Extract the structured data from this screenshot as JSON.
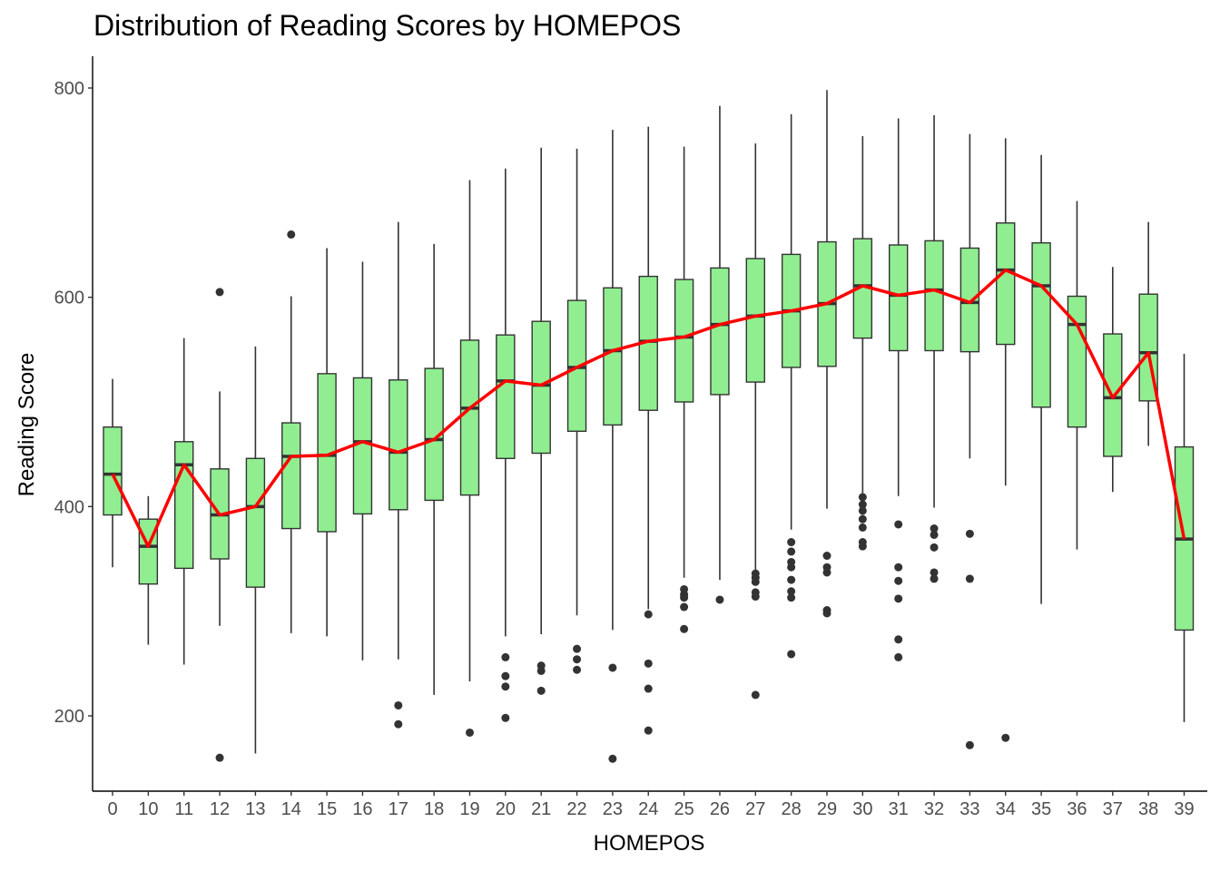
{
  "chart_data": {
    "type": "boxplot",
    "title": "Distribution of Reading Scores by HOMEPOS",
    "xlabel": "HOMEPOS",
    "ylabel": "Reading Score",
    "ylim": [
      130,
      830
    ],
    "yticks": [
      200,
      400,
      600,
      800
    ],
    "grid": false,
    "colors": {
      "box_fill": "#90EE90",
      "box_stroke": "#333333",
      "median_line": "#FF0000",
      "outlier": "#333333"
    },
    "categories": [
      "0",
      "10",
      "11",
      "12",
      "13",
      "14",
      "15",
      "16",
      "17",
      "18",
      "19",
      "20",
      "21",
      "22",
      "23",
      "24",
      "25",
      "26",
      "27",
      "28",
      "29",
      "30",
      "31",
      "32",
      "33",
      "34",
      "35",
      "36",
      "37",
      "38",
      "39"
    ],
    "boxes": [
      {
        "x": "0",
        "whisker_low": 342,
        "q1": 392,
        "median": 431,
        "q3": 476,
        "whisker_high": 522,
        "outliers": []
      },
      {
        "x": "10",
        "whisker_low": 268,
        "q1": 326,
        "median": 362,
        "q3": 388,
        "whisker_high": 410,
        "outliers": []
      },
      {
        "x": "11",
        "whisker_low": 249,
        "q1": 341,
        "median": 440,
        "q3": 462,
        "whisker_high": 561,
        "outliers": []
      },
      {
        "x": "12",
        "whisker_low": 286,
        "q1": 350,
        "median": 392,
        "q3": 436,
        "whisker_high": 510,
        "outliers": [
          605,
          160
        ]
      },
      {
        "x": "13",
        "whisker_low": 164,
        "q1": 323,
        "median": 400,
        "q3": 446,
        "whisker_high": 553,
        "outliers": []
      },
      {
        "x": "14",
        "whisker_low": 279,
        "q1": 379,
        "median": 448,
        "q3": 480,
        "whisker_high": 601,
        "outliers": [
          660
        ]
      },
      {
        "x": "15",
        "whisker_low": 276,
        "q1": 376,
        "median": 449,
        "q3": 527,
        "whisker_high": 647,
        "outliers": []
      },
      {
        "x": "16",
        "whisker_low": 253,
        "q1": 393,
        "median": 462,
        "q3": 523,
        "whisker_high": 634,
        "outliers": []
      },
      {
        "x": "17",
        "whisker_low": 254,
        "q1": 397,
        "median": 452,
        "q3": 521,
        "whisker_high": 672,
        "outliers": [
          210,
          192
        ]
      },
      {
        "x": "18",
        "whisker_low": 220,
        "q1": 406,
        "median": 464,
        "q3": 532,
        "whisker_high": 651,
        "outliers": []
      },
      {
        "x": "19",
        "whisker_low": 233,
        "q1": 411,
        "median": 494,
        "q3": 559,
        "whisker_high": 712,
        "outliers": [
          184
        ]
      },
      {
        "x": "20",
        "whisker_low": 276,
        "q1": 446,
        "median": 520,
        "q3": 564,
        "whisker_high": 723,
        "outliers": [
          256,
          238,
          228,
          198
        ]
      },
      {
        "x": "21",
        "whisker_low": 278,
        "q1": 451,
        "median": 516,
        "q3": 577,
        "whisker_high": 743,
        "outliers": [
          248,
          243,
          224
        ]
      },
      {
        "x": "22",
        "whisker_low": 296,
        "q1": 472,
        "median": 533,
        "q3": 597,
        "whisker_high": 742,
        "outliers": [
          264,
          254,
          244
        ]
      },
      {
        "x": "23",
        "whisker_low": 282,
        "q1": 478,
        "median": 549,
        "q3": 609,
        "whisker_high": 760,
        "outliers": [
          246,
          159
        ]
      },
      {
        "x": "24",
        "whisker_low": 302,
        "q1": 492,
        "median": 558,
        "q3": 620,
        "whisker_high": 763,
        "outliers": [
          297,
          250,
          226,
          186
        ]
      },
      {
        "x": "25",
        "whisker_low": 332,
        "q1": 500,
        "median": 562,
        "q3": 617,
        "whisker_high": 744,
        "outliers": [
          321,
          316,
          313,
          304,
          283
        ]
      },
      {
        "x": "26",
        "whisker_low": 330,
        "q1": 507,
        "median": 574,
        "q3": 628,
        "whisker_high": 783,
        "outliers": [
          311
        ]
      },
      {
        "x": "27",
        "whisker_low": 338,
        "q1": 519,
        "median": 582,
        "q3": 637,
        "whisker_high": 747,
        "outliers": [
          336,
          332,
          328,
          318,
          314,
          220
        ]
      },
      {
        "x": "28",
        "whisker_low": 378,
        "q1": 533,
        "median": 587,
        "q3": 641,
        "whisker_high": 775,
        "outliers": [
          366,
          357,
          347,
          342,
          330,
          319,
          313,
          259
        ]
      },
      {
        "x": "29",
        "whisker_low": 398,
        "q1": 534,
        "median": 594,
        "q3": 653,
        "whisker_high": 798,
        "outliers": [
          353,
          342,
          337,
          301,
          298
        ]
      },
      {
        "x": "30",
        "whisker_low": 412,
        "q1": 561,
        "median": 611,
        "q3": 656,
        "whisker_high": 754,
        "outliers": [
          409,
          402,
          396,
          388,
          380,
          366,
          362
        ]
      },
      {
        "x": "31",
        "whisker_low": 410,
        "q1": 549,
        "median": 602,
        "q3": 650,
        "whisker_high": 771,
        "outliers": [
          383,
          342,
          329,
          312,
          273,
          256
        ]
      },
      {
        "x": "32",
        "whisker_low": 399,
        "q1": 549,
        "median": 607,
        "q3": 654,
        "whisker_high": 774,
        "outliers": [
          379,
          373,
          361,
          337,
          331
        ]
      },
      {
        "x": "33",
        "whisker_low": 446,
        "q1": 548,
        "median": 595,
        "q3": 647,
        "whisker_high": 756,
        "outliers": [
          374,
          331,
          172
        ]
      },
      {
        "x": "34",
        "whisker_low": 420,
        "q1": 555,
        "median": 626,
        "q3": 671,
        "whisker_high": 752,
        "outliers": [
          179
        ]
      },
      {
        "x": "35",
        "whisker_low": 307,
        "q1": 495,
        "median": 611,
        "q3": 652,
        "whisker_high": 736,
        "outliers": []
      },
      {
        "x": "36",
        "whisker_low": 359,
        "q1": 476,
        "median": 574,
        "q3": 601,
        "whisker_high": 692,
        "outliers": []
      },
      {
        "x": "37",
        "whisker_low": 414,
        "q1": 448,
        "median": 504,
        "q3": 565,
        "whisker_high": 629,
        "outliers": []
      },
      {
        "x": "38",
        "whisker_low": 458,
        "q1": 501,
        "median": 547,
        "q3": 603,
        "whisker_high": 672,
        "outliers": []
      },
      {
        "x": "39",
        "whisker_low": 194,
        "q1": 282,
        "median": 369,
        "q3": 457,
        "whisker_high": 546,
        "outliers": []
      }
    ]
  }
}
